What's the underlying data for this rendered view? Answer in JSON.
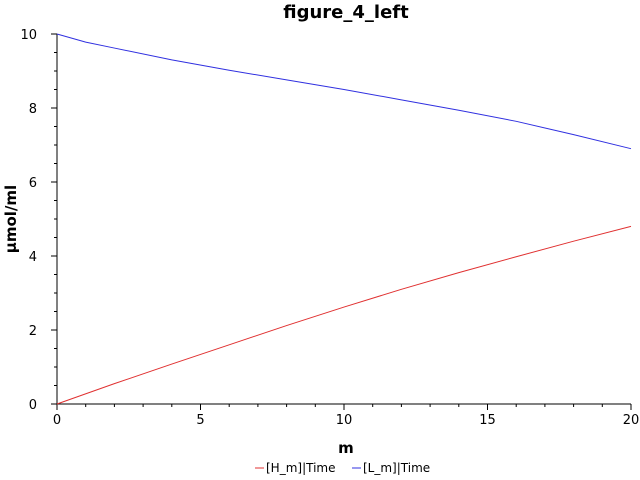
{
  "chart_data": {
    "type": "line",
    "title": "figure_4_left",
    "xlabel": "m",
    "ylabel": "µmol/ml",
    "xlim": [
      0,
      20
    ],
    "ylim": [
      0,
      10
    ],
    "xticks": [
      0,
      5,
      10,
      15,
      20
    ],
    "yticks": [
      0,
      2,
      4,
      6,
      8,
      10
    ],
    "grid": false,
    "legend_position": "bottom",
    "series": [
      {
        "name": "[H_m]|Time",
        "color": "#e03030",
        "x": [
          0,
          2,
          4,
          6,
          8,
          10,
          12,
          14,
          16,
          18,
          20
        ],
        "y": [
          0.0,
          0.55,
          1.08,
          1.6,
          2.12,
          2.62,
          3.1,
          3.55,
          3.98,
          4.4,
          4.8
        ]
      },
      {
        "name": "[L_m]|Time",
        "color": "#3030e0",
        "x": [
          0,
          1,
          2,
          4,
          6,
          8,
          10,
          12,
          14,
          16,
          18,
          20
        ],
        "y": [
          10.0,
          9.78,
          9.62,
          9.3,
          9.02,
          8.76,
          8.5,
          8.22,
          7.94,
          7.64,
          7.28,
          6.9
        ]
      }
    ]
  }
}
